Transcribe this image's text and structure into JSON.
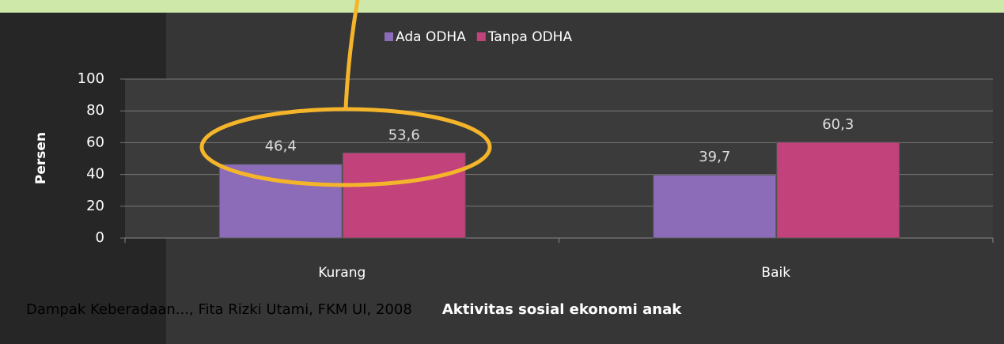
{
  "chart_data": {
    "type": "bar",
    "y_label": "Persen",
    "x_label": "Aktivitas sosial ekonomi anak",
    "categories": [
      "Kurang",
      "Baik"
    ],
    "series": [
      {
        "name": "Ada ODHA",
        "color": "#8c6bb8",
        "values": [
          46.4,
          39.7
        ],
        "value_labels": [
          "46,4",
          "39,7"
        ]
      },
      {
        "name": "Tanpa ODHA",
        "color": "#c2437c",
        "values": [
          53.6,
          60.3
        ],
        "value_labels": [
          "53,6",
          "60,3"
        ]
      }
    ],
    "ylim": [
      0,
      100
    ],
    "yticks": [
      0,
      20,
      40,
      60,
      80,
      100
    ],
    "grid": true
  },
  "footer": "Dampak Keberadaan..., Fita Rizki Utami, FKM UI, 2008"
}
